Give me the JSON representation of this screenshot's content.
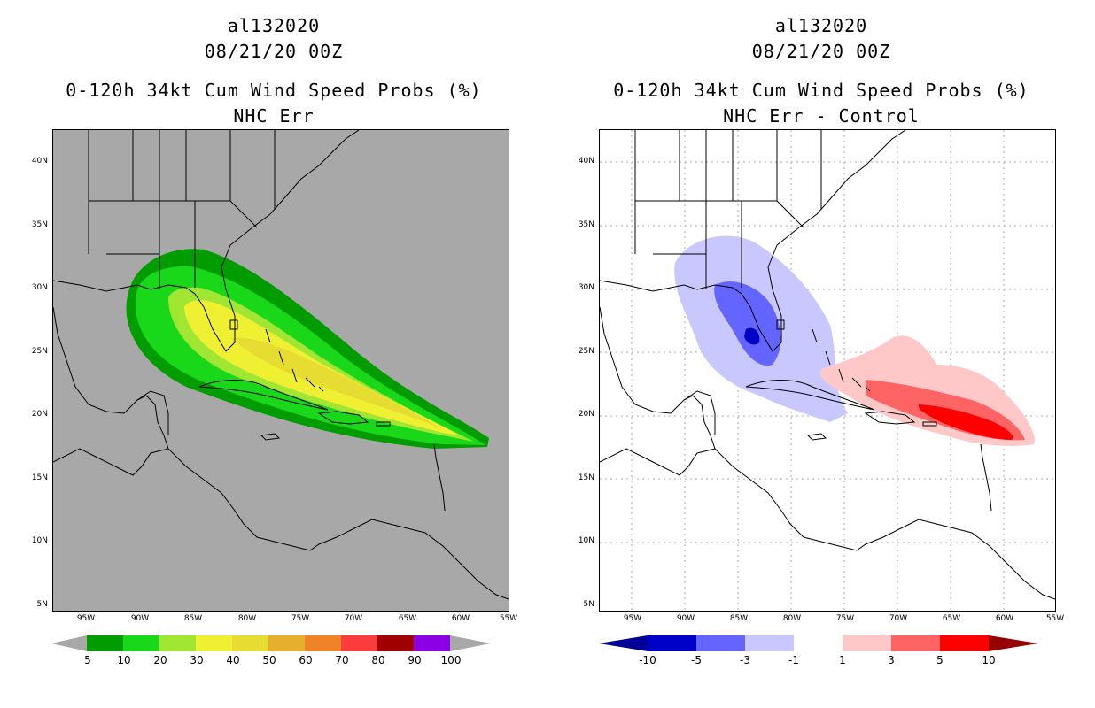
{
  "left_panel": {
    "storm_id": "al132020",
    "date": "08/21/20 00Z",
    "product": "0-120h 34kt Cum Wind Speed Probs (%)",
    "subtitle": "NHC Err",
    "colorbar_labels": [
      "5",
      "10",
      "20",
      "30",
      "40",
      "50",
      "60",
      "70",
      "80",
      "90",
      "100"
    ],
    "colorbar_colors": [
      "#009c00",
      "#19d719",
      "#a0e632",
      "#f0f032",
      "#e6dc32",
      "#e6af2d",
      "#f08228",
      "#fa3c3c",
      "#a00000",
      "#8c00e6"
    ],
    "end_arrow_color": "#a8a8a8"
  },
  "right_panel": {
    "storm_id": "al132020",
    "date": "08/21/20 00Z",
    "product": "0-120h 34kt Cum Wind Speed Probs (%)",
    "subtitle": "NHC Err - Control",
    "colorbar_labels": [
      "-10",
      "-5",
      "-3",
      "-1",
      "1",
      "3",
      "5",
      "10"
    ],
    "colorbar_colors": [
      "#0000c8",
      "#6464ff",
      "#c8c8ff",
      "#ffffff",
      "#ffc8c8",
      "#ff6464",
      "#ff0000"
    ],
    "end_arrow_low_color": "#000096",
    "end_arrow_high_color": "#960000"
  },
  "axes": {
    "lat_labels": [
      "40N",
      "35N",
      "30N",
      "25N",
      "20N",
      "15N",
      "10N",
      "5N"
    ],
    "lon_labels": [
      "95W",
      "90W",
      "85W",
      "80W",
      "75W",
      "70W",
      "65W",
      "60W",
      "55W"
    ]
  }
}
